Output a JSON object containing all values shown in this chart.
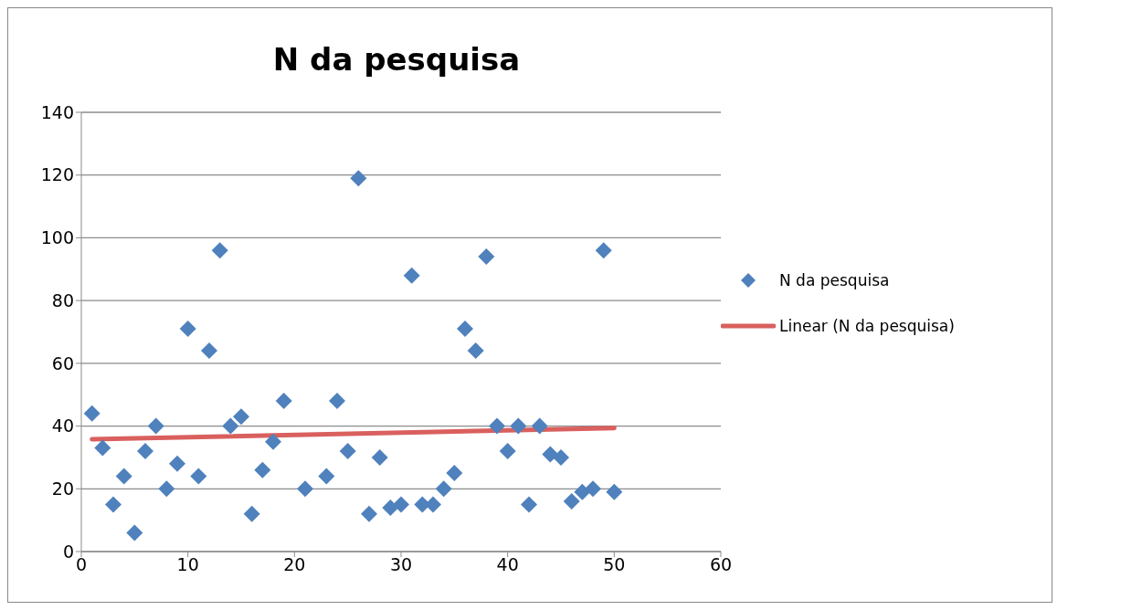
{
  "chart_data": {
    "type": "scatter",
    "title": "N da pesquisa",
    "x": [
      1,
      2,
      3,
      4,
      5,
      6,
      7,
      8,
      9,
      10,
      11,
      12,
      13,
      14,
      15,
      16,
      17,
      18,
      19,
      21,
      23,
      24,
      25,
      26,
      27,
      28,
      29,
      30,
      31,
      32,
      33,
      34,
      35,
      36,
      37,
      38,
      39,
      40,
      41,
      42,
      43,
      44,
      45,
      46,
      47,
      48,
      49,
      50
    ],
    "series": [
      {
        "name": "N da pesquisa",
        "color": "#4f81bd",
        "marker": "diamond",
        "values": [
          44,
          33,
          15,
          24,
          6,
          32,
          40,
          20,
          28,
          71,
          24,
          64,
          96,
          40,
          43,
          12,
          26,
          35,
          48,
          20,
          24,
          48,
          32,
          119,
          12,
          30,
          14,
          15,
          88,
          15,
          15,
          20,
          25,
          71,
          64,
          94,
          40,
          32,
          40,
          15,
          40,
          31,
          30,
          16,
          19,
          20,
          96,
          19
        ]
      },
      {
        "name": "Linear (N da pesquisa)",
        "type": "line",
        "color": "#d9605e",
        "marker": "none",
        "x": [
          1,
          50
        ],
        "values": [
          35.8,
          39.4
        ]
      }
    ],
    "xlim": [
      0,
      60
    ],
    "xticks": [
      0,
      10,
      20,
      30,
      40,
      50,
      60
    ],
    "ylim": [
      0,
      140
    ],
    "yticks": [
      0,
      20,
      40,
      60,
      80,
      100,
      120,
      140
    ],
    "grid": "y",
    "legend": "right"
  }
}
